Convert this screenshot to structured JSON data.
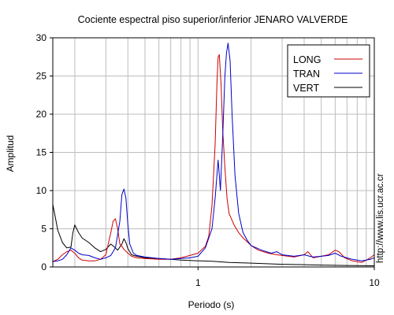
{
  "chart_data": {
    "type": "line",
    "title": "Cociente espectral piso superior/inferior  JENARO VALVERDE",
    "xlabel": "Periodo (s)",
    "ylabel": "Amplitud",
    "x_scale": "log",
    "xlim": [
      0.15,
      10
    ],
    "ylim": [
      0,
      30
    ],
    "x_ticks": [
      {
        "value": 1,
        "label": "1"
      },
      {
        "value": 10,
        "label": "10"
      }
    ],
    "y_ticks": [
      0,
      5,
      10,
      15,
      20,
      25,
      30
    ],
    "grid": true,
    "legend_position": "top-right",
    "side_text": "http://www.lis.ucr.ac.cr",
    "series": [
      {
        "name": "LONG",
        "color": "#cc0000",
        "points": [
          [
            0.15,
            0.7
          ],
          [
            0.16,
            1.0
          ],
          [
            0.17,
            1.6
          ],
          [
            0.18,
            2.0
          ],
          [
            0.19,
            2.2
          ],
          [
            0.2,
            1.8
          ],
          [
            0.21,
            1.2
          ],
          [
            0.22,
            0.9
          ],
          [
            0.24,
            0.8
          ],
          [
            0.26,
            0.8
          ],
          [
            0.28,
            1.0
          ],
          [
            0.3,
            1.6
          ],
          [
            0.32,
            4.5
          ],
          [
            0.33,
            6.0
          ],
          [
            0.34,
            6.3
          ],
          [
            0.35,
            5.0
          ],
          [
            0.36,
            3.0
          ],
          [
            0.37,
            2.7
          ],
          [
            0.38,
            2.3
          ],
          [
            0.4,
            1.8
          ],
          [
            0.42,
            1.4
          ],
          [
            0.45,
            1.2
          ],
          [
            0.5,
            1.1
          ],
          [
            0.6,
            1.0
          ],
          [
            0.7,
            1.0
          ],
          [
            0.8,
            1.2
          ],
          [
            0.9,
            1.5
          ],
          [
            1.0,
            1.8
          ],
          [
            1.1,
            2.7
          ],
          [
            1.15,
            4.0
          ],
          [
            1.2,
            8.0
          ],
          [
            1.25,
            16.0
          ],
          [
            1.28,
            24.0
          ],
          [
            1.3,
            27.5
          ],
          [
            1.32,
            27.8
          ],
          [
            1.35,
            24.0
          ],
          [
            1.38,
            18.0
          ],
          [
            1.42,
            13.0
          ],
          [
            1.46,
            9.0
          ],
          [
            1.5,
            7.0
          ],
          [
            1.6,
            5.5
          ],
          [
            1.7,
            4.5
          ],
          [
            1.8,
            3.8
          ],
          [
            1.9,
            3.3
          ],
          [
            2.0,
            2.8
          ],
          [
            2.2,
            2.2
          ],
          [
            2.5,
            1.8
          ],
          [
            2.8,
            1.6
          ],
          [
            3.0,
            1.5
          ],
          [
            3.5,
            1.3
          ],
          [
            4.0,
            1.6
          ],
          [
            4.2,
            2.0
          ],
          [
            4.5,
            1.2
          ],
          [
            5.0,
            1.4
          ],
          [
            5.5,
            1.6
          ],
          [
            6.0,
            2.2
          ],
          [
            6.3,
            2.0
          ],
          [
            6.8,
            1.2
          ],
          [
            7.5,
            0.8
          ],
          [
            8.5,
            0.6
          ],
          [
            9.0,
            0.9
          ],
          [
            9.5,
            1.2
          ],
          [
            10.0,
            1.6
          ]
        ]
      },
      {
        "name": "TRAN",
        "color": "#0000cc",
        "points": [
          [
            0.15,
            0.7
          ],
          [
            0.16,
            0.8
          ],
          [
            0.17,
            1.0
          ],
          [
            0.18,
            1.6
          ],
          [
            0.19,
            2.5
          ],
          [
            0.2,
            2.2
          ],
          [
            0.21,
            1.8
          ],
          [
            0.22,
            1.6
          ],
          [
            0.24,
            1.5
          ],
          [
            0.26,
            1.2
          ],
          [
            0.28,
            1.0
          ],
          [
            0.3,
            1.2
          ],
          [
            0.32,
            1.5
          ],
          [
            0.34,
            2.5
          ],
          [
            0.36,
            6.0
          ],
          [
            0.37,
            9.5
          ],
          [
            0.38,
            10.2
          ],
          [
            0.39,
            9.0
          ],
          [
            0.4,
            5.5
          ],
          [
            0.41,
            3.0
          ],
          [
            0.43,
            1.8
          ],
          [
            0.45,
            1.5
          ],
          [
            0.5,
            1.3
          ],
          [
            0.6,
            1.1
          ],
          [
            0.7,
            1.0
          ],
          [
            0.8,
            1.1
          ],
          [
            0.9,
            1.2
          ],
          [
            1.0,
            1.4
          ],
          [
            1.1,
            2.5
          ],
          [
            1.2,
            5.0
          ],
          [
            1.25,
            9.0
          ],
          [
            1.28,
            12.0
          ],
          [
            1.3,
            14.0
          ],
          [
            1.32,
            12.0
          ],
          [
            1.34,
            10.0
          ],
          [
            1.38,
            17.0
          ],
          [
            1.42,
            25.0
          ],
          [
            1.45,
            28.0
          ],
          [
            1.48,
            29.3
          ],
          [
            1.52,
            27.0
          ],
          [
            1.56,
            20.0
          ],
          [
            1.62,
            12.0
          ],
          [
            1.7,
            7.0
          ],
          [
            1.8,
            4.5
          ],
          [
            1.9,
            3.5
          ],
          [
            2.0,
            2.8
          ],
          [
            2.3,
            2.2
          ],
          [
            2.6,
            1.8
          ],
          [
            2.8,
            2.0
          ],
          [
            3.0,
            1.6
          ],
          [
            3.5,
            1.4
          ],
          [
            4.0,
            1.6
          ],
          [
            4.3,
            1.4
          ],
          [
            4.5,
            1.3
          ],
          [
            5.0,
            1.4
          ],
          [
            5.5,
            1.5
          ],
          [
            6.0,
            1.8
          ],
          [
            6.5,
            1.4
          ],
          [
            7.5,
            1.0
          ],
          [
            8.5,
            0.8
          ],
          [
            9.5,
            1.0
          ],
          [
            10.0,
            1.2
          ]
        ]
      },
      {
        "name": "VERT",
        "color": "#000000",
        "points": [
          [
            0.15,
            8.2
          ],
          [
            0.155,
            6.5
          ],
          [
            0.16,
            4.8
          ],
          [
            0.165,
            4.0
          ],
          [
            0.17,
            3.2
          ],
          [
            0.18,
            2.5
          ],
          [
            0.19,
            2.6
          ],
          [
            0.195,
            4.5
          ],
          [
            0.2,
            5.5
          ],
          [
            0.21,
            4.5
          ],
          [
            0.22,
            3.8
          ],
          [
            0.24,
            3.2
          ],
          [
            0.26,
            2.5
          ],
          [
            0.28,
            2.0
          ],
          [
            0.3,
            2.3
          ],
          [
            0.32,
            3.0
          ],
          [
            0.34,
            2.5
          ],
          [
            0.35,
            2.2
          ],
          [
            0.37,
            3.0
          ],
          [
            0.38,
            3.7
          ],
          [
            0.39,
            3.2
          ],
          [
            0.4,
            2.4
          ],
          [
            0.42,
            1.6
          ],
          [
            0.45,
            1.4
          ],
          [
            0.5,
            1.2
          ],
          [
            0.6,
            1.1
          ],
          [
            0.7,
            1.0
          ],
          [
            0.8,
            0.9
          ],
          [
            0.9,
            0.85
          ],
          [
            1.0,
            0.8
          ],
          [
            1.2,
            0.75
          ],
          [
            1.5,
            0.6
          ],
          [
            2.0,
            0.5
          ],
          [
            3.0,
            0.35
          ],
          [
            4.0,
            0.3
          ],
          [
            5.0,
            0.25
          ],
          [
            7.0,
            0.2
          ],
          [
            10.0,
            0.15
          ]
        ]
      }
    ]
  }
}
